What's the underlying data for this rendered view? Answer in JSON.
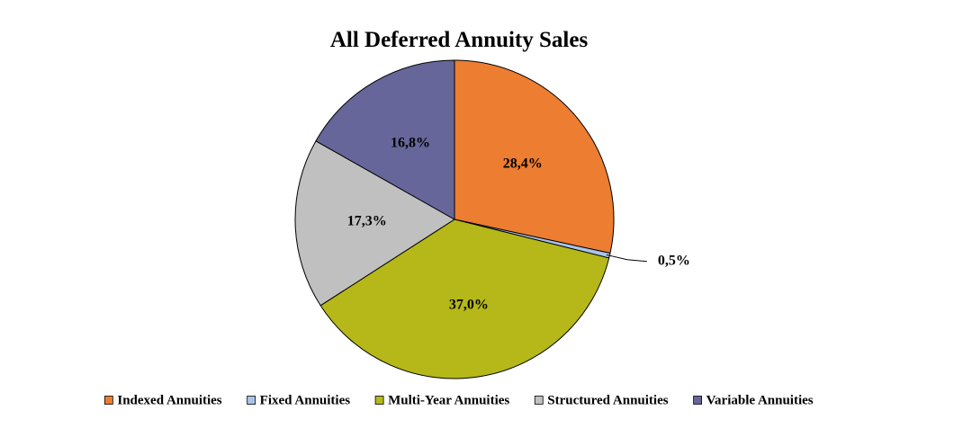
{
  "chart_data": {
    "type": "pie",
    "title": "All Deferred Annuity Sales",
    "slices": [
      {
        "name": "Indexed Annuities",
        "value": 28.4,
        "label": "28,4%",
        "color": "#ED7D31"
      },
      {
        "name": "Fixed Annuities",
        "value": 0.5,
        "label": "0,5%",
        "color": "#A9C4E8"
      },
      {
        "name": "Multi-Year Annuities",
        "value": 37.0,
        "label": "37,0%",
        "color": "#B5B818"
      },
      {
        "name": "Structured Annuities",
        "value": 17.3,
        "label": "17,3%",
        "color": "#C0C0C0"
      },
      {
        "name": "Variable Annuities",
        "value": 16.8,
        "label": "16,8%",
        "color": "#67669A"
      }
    ],
    "start_angle": "12 o'clock",
    "direction": "clockwise",
    "legend_position": "bottom",
    "data_labels": "percent"
  }
}
